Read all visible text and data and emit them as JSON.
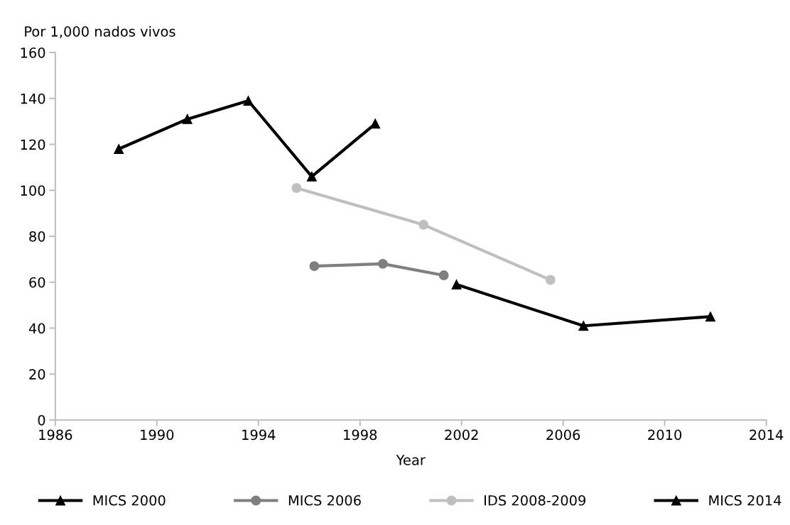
{
  "chart_data": {
    "type": "line",
    "xlabel": "Year",
    "ylabel": "Por 1,000 nados vivos",
    "xlim": [
      1986,
      2014
    ],
    "xticks": [
      1986,
      1990,
      1994,
      1998,
      2002,
      2006,
      2010,
      2014
    ],
    "ylim": [
      0,
      160
    ],
    "yticks": [
      0,
      20,
      40,
      60,
      80,
      100,
      120,
      140,
      160
    ],
    "grid": false,
    "legend": "bottom",
    "line_style": "solid",
    "series": [
      {
        "name": "MICS 2000",
        "color": "#000000",
        "marker": "triangle",
        "x": [
          1988.5,
          1991.2,
          1993.6,
          1996.1,
          1998.6
        ],
        "values": [
          118,
          131,
          139,
          106,
          129
        ]
      },
      {
        "name": "MICS 2006",
        "color": "#7f7f7f",
        "marker": "circle",
        "x": [
          1996.2,
          1998.9,
          2001.3
        ],
        "values": [
          67,
          68,
          63
        ]
      },
      {
        "name": "IDS 2008-2009",
        "color": "#bfbfbf",
        "marker": "circle",
        "x": [
          1995.5,
          2000.5,
          2005.5
        ],
        "values": [
          101,
          85,
          61
        ]
      },
      {
        "name": "MICS 2014",
        "color": "#000000",
        "marker": "triangle",
        "x": [
          2001.8,
          2006.8,
          2011.8
        ],
        "values": [
          59,
          41,
          45
        ]
      }
    ]
  }
}
